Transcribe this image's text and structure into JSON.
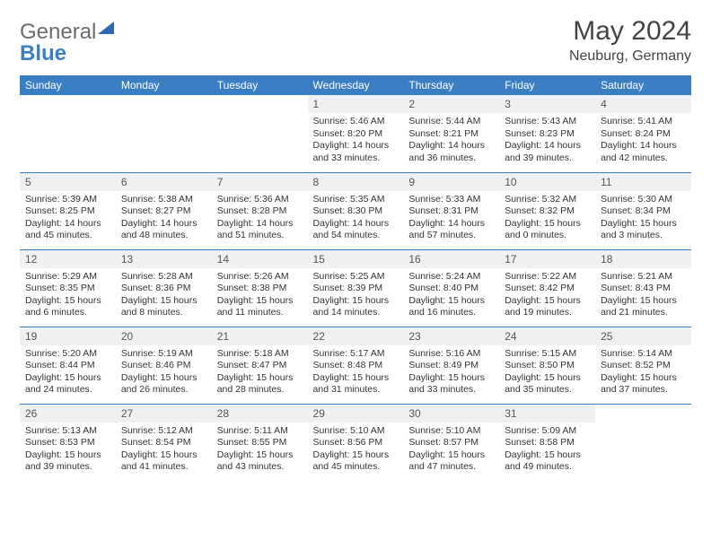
{
  "logo": {
    "word1": "General",
    "word2": "Blue"
  },
  "title": "May 2024",
  "location": "Neuburg, Germany",
  "header_bg": "#3a7fc4",
  "header_text": "#ffffff",
  "daynum_bg": "#eef0f2",
  "divider_color": "#3a7fc4",
  "days": [
    "Sunday",
    "Monday",
    "Tuesday",
    "Wednesday",
    "Thursday",
    "Friday",
    "Saturday"
  ],
  "weeks": [
    [
      null,
      null,
      null,
      {
        "n": "1",
        "sr": "5:46 AM",
        "ss": "8:20 PM",
        "dl": "14 hours and 33 minutes."
      },
      {
        "n": "2",
        "sr": "5:44 AM",
        "ss": "8:21 PM",
        "dl": "14 hours and 36 minutes."
      },
      {
        "n": "3",
        "sr": "5:43 AM",
        "ss": "8:23 PM",
        "dl": "14 hours and 39 minutes."
      },
      {
        "n": "4",
        "sr": "5:41 AM",
        "ss": "8:24 PM",
        "dl": "14 hours and 42 minutes."
      }
    ],
    [
      {
        "n": "5",
        "sr": "5:39 AM",
        "ss": "8:25 PM",
        "dl": "14 hours and 45 minutes."
      },
      {
        "n": "6",
        "sr": "5:38 AM",
        "ss": "8:27 PM",
        "dl": "14 hours and 48 minutes."
      },
      {
        "n": "7",
        "sr": "5:36 AM",
        "ss": "8:28 PM",
        "dl": "14 hours and 51 minutes."
      },
      {
        "n": "8",
        "sr": "5:35 AM",
        "ss": "8:30 PM",
        "dl": "14 hours and 54 minutes."
      },
      {
        "n": "9",
        "sr": "5:33 AM",
        "ss": "8:31 PM",
        "dl": "14 hours and 57 minutes."
      },
      {
        "n": "10",
        "sr": "5:32 AM",
        "ss": "8:32 PM",
        "dl": "15 hours and 0 minutes."
      },
      {
        "n": "11",
        "sr": "5:30 AM",
        "ss": "8:34 PM",
        "dl": "15 hours and 3 minutes."
      }
    ],
    [
      {
        "n": "12",
        "sr": "5:29 AM",
        "ss": "8:35 PM",
        "dl": "15 hours and 6 minutes."
      },
      {
        "n": "13",
        "sr": "5:28 AM",
        "ss": "8:36 PM",
        "dl": "15 hours and 8 minutes."
      },
      {
        "n": "14",
        "sr": "5:26 AM",
        "ss": "8:38 PM",
        "dl": "15 hours and 11 minutes."
      },
      {
        "n": "15",
        "sr": "5:25 AM",
        "ss": "8:39 PM",
        "dl": "15 hours and 14 minutes."
      },
      {
        "n": "16",
        "sr": "5:24 AM",
        "ss": "8:40 PM",
        "dl": "15 hours and 16 minutes."
      },
      {
        "n": "17",
        "sr": "5:22 AM",
        "ss": "8:42 PM",
        "dl": "15 hours and 19 minutes."
      },
      {
        "n": "18",
        "sr": "5:21 AM",
        "ss": "8:43 PM",
        "dl": "15 hours and 21 minutes."
      }
    ],
    [
      {
        "n": "19",
        "sr": "5:20 AM",
        "ss": "8:44 PM",
        "dl": "15 hours and 24 minutes."
      },
      {
        "n": "20",
        "sr": "5:19 AM",
        "ss": "8:46 PM",
        "dl": "15 hours and 26 minutes."
      },
      {
        "n": "21",
        "sr": "5:18 AM",
        "ss": "8:47 PM",
        "dl": "15 hours and 28 minutes."
      },
      {
        "n": "22",
        "sr": "5:17 AM",
        "ss": "8:48 PM",
        "dl": "15 hours and 31 minutes."
      },
      {
        "n": "23",
        "sr": "5:16 AM",
        "ss": "8:49 PM",
        "dl": "15 hours and 33 minutes."
      },
      {
        "n": "24",
        "sr": "5:15 AM",
        "ss": "8:50 PM",
        "dl": "15 hours and 35 minutes."
      },
      {
        "n": "25",
        "sr": "5:14 AM",
        "ss": "8:52 PM",
        "dl": "15 hours and 37 minutes."
      }
    ],
    [
      {
        "n": "26",
        "sr": "5:13 AM",
        "ss": "8:53 PM",
        "dl": "15 hours and 39 minutes."
      },
      {
        "n": "27",
        "sr": "5:12 AM",
        "ss": "8:54 PM",
        "dl": "15 hours and 41 minutes."
      },
      {
        "n": "28",
        "sr": "5:11 AM",
        "ss": "8:55 PM",
        "dl": "15 hours and 43 minutes."
      },
      {
        "n": "29",
        "sr": "5:10 AM",
        "ss": "8:56 PM",
        "dl": "15 hours and 45 minutes."
      },
      {
        "n": "30",
        "sr": "5:10 AM",
        "ss": "8:57 PM",
        "dl": "15 hours and 47 minutes."
      },
      {
        "n": "31",
        "sr": "5:09 AM",
        "ss": "8:58 PM",
        "dl": "15 hours and 49 minutes."
      },
      null
    ]
  ],
  "labels": {
    "sunrise": "Sunrise:",
    "sunset": "Sunset:",
    "daylight": "Daylight:"
  }
}
